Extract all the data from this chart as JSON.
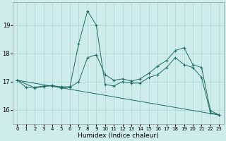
{
  "xlabel": "Humidex (Indice chaleur)",
  "bg_color": "#ceecea",
  "grid_color": "#aed8d4",
  "line_color": "#1e6b65",
  "xlim": [
    -0.5,
    23.5
  ],
  "ylim": [
    15.5,
    19.8
  ],
  "yticks": [
    16,
    17,
    18,
    19
  ],
  "xticks": [
    0,
    1,
    2,
    3,
    4,
    5,
    6,
    7,
    8,
    9,
    10,
    11,
    12,
    13,
    14,
    15,
    16,
    17,
    18,
    19,
    20,
    21,
    22,
    23
  ],
  "series1_x": [
    0,
    1,
    2,
    3,
    4,
    5,
    6,
    7,
    8,
    9,
    10,
    11,
    12,
    13,
    14,
    15,
    16,
    17,
    18,
    19,
    20,
    21,
    22,
    23
  ],
  "series1_y": [
    17.05,
    16.8,
    16.8,
    16.85,
    16.85,
    16.82,
    16.82,
    18.35,
    19.5,
    19.0,
    16.9,
    16.85,
    17.0,
    16.95,
    16.95,
    17.15,
    17.25,
    17.5,
    17.85,
    17.6,
    17.5,
    17.15,
    15.9,
    15.82
  ],
  "series2_x": [
    0,
    2,
    3,
    4,
    5,
    6,
    7,
    8,
    9,
    10,
    11,
    12,
    13,
    14,
    15,
    16,
    17,
    18,
    19,
    20,
    21,
    22,
    23
  ],
  "series2_y": [
    17.05,
    16.78,
    16.82,
    16.87,
    16.78,
    16.8,
    17.0,
    17.85,
    17.95,
    17.25,
    17.05,
    17.1,
    17.02,
    17.1,
    17.3,
    17.55,
    17.75,
    18.1,
    18.2,
    17.6,
    17.5,
    15.98,
    15.82
  ],
  "series3_x": [
    0,
    23
  ],
  "series3_y": [
    17.05,
    15.82
  ]
}
